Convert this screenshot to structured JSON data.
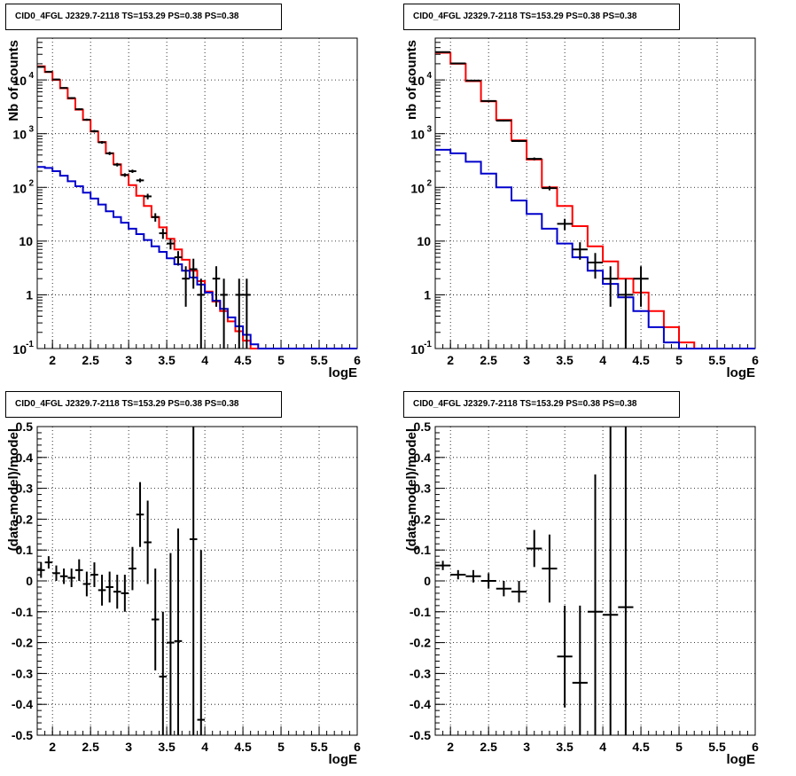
{
  "pads": [
    {
      "title": "CID0_4FGL J2329.7-2118 TS=153.29 PS=0.38 PS=0.38",
      "xlabel": "logE",
      "ylabel": "Nb of counts"
    },
    {
      "title": "CID0_4FGL J2329.7-2118 TS=153.29 PS=0.38 PS=0.38",
      "xlabel": "logE",
      "ylabel": "nb of counts"
    },
    {
      "title": "CID0_4FGL J2329.7-2118 TS=153.29 PS=0.38 PS=0.38",
      "xlabel": "logE",
      "ylabel": "(data-model)/model"
    },
    {
      "title": "CID0_4FGL J2329.7-2118 TS=153.29 PS=0.38 PS=0.38",
      "xlabel": "logE",
      "ylabel": "(data-model)/model"
    }
  ],
  "colors": {
    "model_total": "#ff0000",
    "model_component": "#0000cc",
    "data": "#000000",
    "grid": "#000000"
  },
  "chart_data": [
    {
      "type": "line",
      "title": "CID0_4FGL J2329.7-2118 TS=153.29 PS=0.38 PS=0.38",
      "xlabel": "logE",
      "ylabel": "Nb of counts",
      "xlim": [
        1.8,
        6.0
      ],
      "ylim": [
        0.1,
        60000
      ],
      "yscale": "log",
      "grid": true,
      "x_ticks": [
        "2",
        "2.5",
        "3",
        "3.5",
        "4",
        "4.5",
        "5",
        "5.5",
        "6"
      ],
      "y_ticks": [
        "10^-1",
        "1",
        "10",
        "10^2",
        "10^3",
        "10^4"
      ],
      "bin_edges": [
        1.8,
        1.9,
        2.0,
        2.1,
        2.2,
        2.3,
        2.4,
        2.5,
        2.6,
        2.7,
        2.8,
        2.9,
        3.0,
        3.1,
        3.2,
        3.3,
        3.4,
        3.5,
        3.6,
        3.7,
        3.8,
        3.9,
        4.0,
        4.1,
        4.2,
        4.3,
        4.4,
        4.5,
        4.6,
        4.7,
        4.8,
        4.9,
        5.0,
        5.1,
        5.2,
        5.3,
        5.4,
        5.5,
        5.6,
        5.7,
        5.8,
        5.9,
        6.0
      ],
      "series": [
        {
          "color": "#ff0000",
          "style": "step",
          "values": [
            18000,
            14000,
            10000,
            7000,
            4500,
            2800,
            1800,
            1100,
            700,
            430,
            270,
            170,
            110,
            70,
            45,
            28,
            18,
            11,
            7,
            4.5,
            2.8,
            1.8,
            1.15,
            0.75,
            0.5,
            0.32,
            0.21,
            0.14,
            0.1,
            0.1,
            0.1,
            0.1,
            0.1,
            0.1,
            0.1,
            0.1,
            0.1,
            0.1,
            0.1,
            0.1,
            0.1,
            0.1
          ]
        },
        {
          "color": "#0000cc",
          "style": "step",
          "values": [
            240,
            230,
            200,
            165,
            130,
            105,
            80,
            62,
            48,
            36,
            28,
            22,
            17,
            13.5,
            10.5,
            8,
            6.3,
            4.8,
            3.7,
            2.8,
            2.1,
            1.55,
            1.1,
            0.78,
            0.55,
            0.38,
            0.26,
            0.18,
            0.12,
            0.1,
            0.1,
            0.1,
            0.1,
            0.1,
            0.1,
            0.1,
            0.1,
            0.1,
            0.1,
            0.1,
            0.1,
            0.1
          ]
        },
        {
          "color": "#000000",
          "style": "errorbars",
          "points": [
            {
              "x": 1.85,
              "y": 17500,
              "ylo": 17000,
              "yhi": 18000
            },
            {
              "x": 1.95,
              "y": 14200,
              "ylo": 13800,
              "yhi": 14600
            },
            {
              "x": 2.05,
              "y": 10200,
              "ylo": 9900,
              "yhi": 10500
            },
            {
              "x": 2.15,
              "y": 7100,
              "ylo": 6900,
              "yhi": 7300
            },
            {
              "x": 2.25,
              "y": 4600,
              "ylo": 4450,
              "yhi": 4750
            },
            {
              "x": 2.35,
              "y": 2850,
              "ylo": 2750,
              "yhi": 2950
            },
            {
              "x": 2.45,
              "y": 1820,
              "ylo": 1740,
              "yhi": 1900
            },
            {
              "x": 2.55,
              "y": 1110,
              "ylo": 1050,
              "yhi": 1170
            },
            {
              "x": 2.65,
              "y": 690,
              "ylo": 650,
              "yhi": 730
            },
            {
              "x": 2.75,
              "y": 430,
              "ylo": 400,
              "yhi": 460
            },
            {
              "x": 2.85,
              "y": 265,
              "ylo": 245,
              "yhi": 285
            },
            {
              "x": 2.95,
              "y": 170,
              "ylo": 157,
              "yhi": 183
            },
            {
              "x": 3.05,
              "y": 200,
              "ylo": 186,
              "yhi": 214
            },
            {
              "x": 3.15,
              "y": 135,
              "ylo": 124,
              "yhi": 146
            },
            {
              "x": 3.25,
              "y": 68,
              "ylo": 60,
              "yhi": 76
            },
            {
              "x": 3.35,
              "y": 28,
              "ylo": 23,
              "yhi": 33
            },
            {
              "x": 3.45,
              "y": 14,
              "ylo": 11,
              "yhi": 17
            },
            {
              "x": 3.55,
              "y": 9,
              "ylo": 7,
              "yhi": 11
            },
            {
              "x": 3.65,
              "y": 5,
              "ylo": 3.5,
              "yhi": 6.5
            },
            {
              "x": 3.75,
              "y": 2,
              "ylo": 0.6,
              "yhi": 3.4
            },
            {
              "x": 3.85,
              "y": 3,
              "ylo": 1.3,
              "yhi": 4.7
            },
            {
              "x": 3.95,
              "y": 1,
              "ylo": 0.1,
              "yhi": 2.0
            },
            {
              "x": 4.15,
              "y": 2,
              "ylo": 0.6,
              "yhi": 3.4
            },
            {
              "x": 4.25,
              "y": 1,
              "ylo": 0.1,
              "yhi": 2.0
            },
            {
              "x": 4.45,
              "y": 1,
              "ylo": 0.1,
              "yhi": 2.0
            },
            {
              "x": 4.55,
              "y": 1,
              "ylo": 0.1,
              "yhi": 2.0
            }
          ]
        }
      ]
    },
    {
      "type": "line",
      "title": "CID0_4FGL J2329.7-2118 TS=153.29 PS=0.38 PS=0.38",
      "xlabel": "logE",
      "ylabel": "nb of counts",
      "xlim": [
        1.8,
        6.0
      ],
      "ylim": [
        0.1,
        60000
      ],
      "yscale": "log",
      "grid": true,
      "x_ticks": [
        "2",
        "2.5",
        "3",
        "3.5",
        "4",
        "4.5",
        "5",
        "5.5",
        "6"
      ],
      "y_ticks": [
        "10^-1",
        "1",
        "10",
        "10^2",
        "10^3",
        "10^4"
      ],
      "bin_edges": [
        1.8,
        2.0,
        2.2,
        2.4,
        2.6,
        2.8,
        3.0,
        3.2,
        3.4,
        3.6,
        3.8,
        4.0,
        4.2,
        4.4,
        4.6,
        4.8,
        5.0,
        5.2,
        5.4,
        5.6,
        5.8,
        6.0
      ],
      "series": [
        {
          "color": "#ff0000",
          "style": "step",
          "values": [
            32000,
            20000,
            9500,
            4000,
            1800,
            750,
            330,
            100,
            45,
            19,
            8,
            4.2,
            2.0,
            1.1,
            0.5,
            0.25,
            0.13,
            0.1,
            0.1,
            0.1,
            0.1
          ]
        },
        {
          "color": "#0000cc",
          "style": "step",
          "values": [
            500,
            430,
            300,
            180,
            100,
            57,
            32,
            17,
            9,
            5,
            2.8,
            1.6,
            0.9,
            0.5,
            0.25,
            0.13,
            0.1,
            0.1,
            0.1,
            0.1,
            0.1
          ]
        },
        {
          "color": "#000000",
          "style": "errorbars",
          "points": [
            {
              "x": 1.9,
              "y": 33000,
              "ylo": 32000,
              "yhi": 34000
            },
            {
              "x": 2.1,
              "y": 20300,
              "ylo": 19800,
              "yhi": 20800
            },
            {
              "x": 2.3,
              "y": 9700,
              "ylo": 9400,
              "yhi": 10000
            },
            {
              "x": 2.5,
              "y": 4050,
              "ylo": 3900,
              "yhi": 4200
            },
            {
              "x": 2.7,
              "y": 1750,
              "ylo": 1680,
              "yhi": 1820
            },
            {
              "x": 2.9,
              "y": 730,
              "ylo": 700,
              "yhi": 760
            },
            {
              "x": 3.1,
              "y": 340,
              "ylo": 320,
              "yhi": 360
            },
            {
              "x": 3.3,
              "y": 97,
              "ylo": 88,
              "yhi": 106
            },
            {
              "x": 3.5,
              "y": 21,
              "ylo": 16,
              "yhi": 26
            },
            {
              "x": 3.7,
              "y": 7,
              "ylo": 4.5,
              "yhi": 9.5
            },
            {
              "x": 3.9,
              "y": 4,
              "ylo": 2.0,
              "yhi": 6.0
            },
            {
              "x": 4.1,
              "y": 2,
              "ylo": 0.6,
              "yhi": 3.4
            },
            {
              "x": 4.3,
              "y": 1,
              "ylo": 0.1,
              "yhi": 2.0
            },
            {
              "x": 4.5,
              "y": 2,
              "ylo": 0.6,
              "yhi": 3.4
            }
          ]
        }
      ]
    },
    {
      "type": "scatter",
      "title": "CID0_4FGL J2329.7-2118 TS=153.29 PS=0.38 PS=0.38",
      "xlabel": "logE",
      "ylabel": "(data-model)/model",
      "xlim": [
        1.8,
        6.0
      ],
      "ylim": [
        -0.5,
        0.5
      ],
      "grid": true,
      "x_ticks": [
        "2",
        "2.5",
        "3",
        "3.5",
        "4",
        "4.5",
        "5",
        "5.5",
        "6"
      ],
      "y_ticks": [
        "-0.5",
        "-0.4",
        "-0.3",
        "-0.2",
        "-0.1",
        "0",
        "0.1",
        "0.2",
        "0.3",
        "0.4",
        "0.5"
      ],
      "bin_width": 0.1,
      "points": [
        {
          "x": 1.85,
          "y": 0.035,
          "ylo": 0.01,
          "yhi": 0.06
        },
        {
          "x": 1.95,
          "y": 0.06,
          "ylo": 0.04,
          "yhi": 0.08
        },
        {
          "x": 2.05,
          "y": 0.025,
          "ylo": 0.0,
          "yhi": 0.05
        },
        {
          "x": 2.15,
          "y": 0.015,
          "ylo": -0.01,
          "yhi": 0.04
        },
        {
          "x": 2.25,
          "y": 0.01,
          "ylo": -0.02,
          "yhi": 0.04
        },
        {
          "x": 2.35,
          "y": 0.035,
          "ylo": 0.0,
          "yhi": 0.07
        },
        {
          "x": 2.45,
          "y": -0.01,
          "ylo": -0.05,
          "yhi": 0.03
        },
        {
          "x": 2.55,
          "y": 0.02,
          "ylo": -0.02,
          "yhi": 0.06
        },
        {
          "x": 2.65,
          "y": -0.03,
          "ylo": -0.08,
          "yhi": 0.02
        },
        {
          "x": 2.75,
          "y": -0.02,
          "ylo": -0.07,
          "yhi": 0.03
        },
        {
          "x": 2.85,
          "y": -0.035,
          "ylo": -0.09,
          "yhi": 0.02
        },
        {
          "x": 2.95,
          "y": -0.04,
          "ylo": -0.1,
          "yhi": 0.02
        },
        {
          "x": 3.05,
          "y": 0.04,
          "ylo": -0.03,
          "yhi": 0.11
        },
        {
          "x": 3.15,
          "y": 0.215,
          "ylo": 0.11,
          "yhi": 0.32
        },
        {
          "x": 3.25,
          "y": 0.125,
          "ylo": -0.01,
          "yhi": 0.26
        },
        {
          "x": 3.35,
          "y": -0.125,
          "ylo": -0.29,
          "yhi": 0.04
        },
        {
          "x": 3.45,
          "y": -0.31,
          "ylo": -0.5,
          "yhi": -0.1
        },
        {
          "x": 3.55,
          "y": -0.2,
          "ylo": -0.5,
          "yhi": 0.09
        },
        {
          "x": 3.65,
          "y": -0.195,
          "ylo": -0.5,
          "yhi": 0.17
        },
        {
          "x": 3.85,
          "y": 0.135,
          "ylo": -0.5,
          "yhi": 0.5
        },
        {
          "x": 3.95,
          "y": -0.45,
          "ylo": -0.5,
          "yhi": 0.1
        }
      ]
    },
    {
      "type": "scatter",
      "title": "CID0_4FGL J2329.7-2118 TS=153.29 PS=0.38 PS=0.38",
      "xlabel": "logE",
      "ylabel": "(data-model)/model",
      "xlim": [
        1.8,
        6.0
      ],
      "ylim": [
        -0.5,
        0.5
      ],
      "grid": true,
      "x_ticks": [
        "2",
        "2.5",
        "3",
        "3.5",
        "4",
        "4.5",
        "5",
        "5.5",
        "6"
      ],
      "y_ticks": [
        "-0.5",
        "-0.4",
        "-0.3",
        "-0.2",
        "-0.1",
        "0",
        "0.1",
        "0.2",
        "0.3",
        "0.4",
        "0.5"
      ],
      "bin_width": 0.2,
      "points": [
        {
          "x": 1.9,
          "y": 0.05,
          "ylo": 0.035,
          "yhi": 0.065
        },
        {
          "x": 2.1,
          "y": 0.02,
          "ylo": 0.005,
          "yhi": 0.035
        },
        {
          "x": 2.3,
          "y": 0.015,
          "ylo": -0.005,
          "yhi": 0.035
        },
        {
          "x": 2.5,
          "y": 0.0,
          "ylo": -0.025,
          "yhi": 0.025
        },
        {
          "x": 2.7,
          "y": -0.025,
          "ylo": -0.05,
          "yhi": 0.0
        },
        {
          "x": 2.9,
          "y": -0.035,
          "ylo": -0.07,
          "yhi": 0.0
        },
        {
          "x": 3.1,
          "y": 0.105,
          "ylo": 0.045,
          "yhi": 0.165
        },
        {
          "x": 3.3,
          "y": 0.04,
          "ylo": -0.07,
          "yhi": 0.15
        },
        {
          "x": 3.5,
          "y": -0.245,
          "ylo": -0.41,
          "yhi": -0.08
        },
        {
          "x": 3.7,
          "y": -0.33,
          "ylo": -0.5,
          "yhi": -0.08
        },
        {
          "x": 3.9,
          "y": -0.1,
          "ylo": -0.5,
          "yhi": 0.345
        },
        {
          "x": 4.1,
          "y": -0.11,
          "ylo": -0.5,
          "yhi": 0.5
        },
        {
          "x": 4.3,
          "y": -0.085,
          "ylo": -0.5,
          "yhi": 0.5
        }
      ]
    }
  ]
}
